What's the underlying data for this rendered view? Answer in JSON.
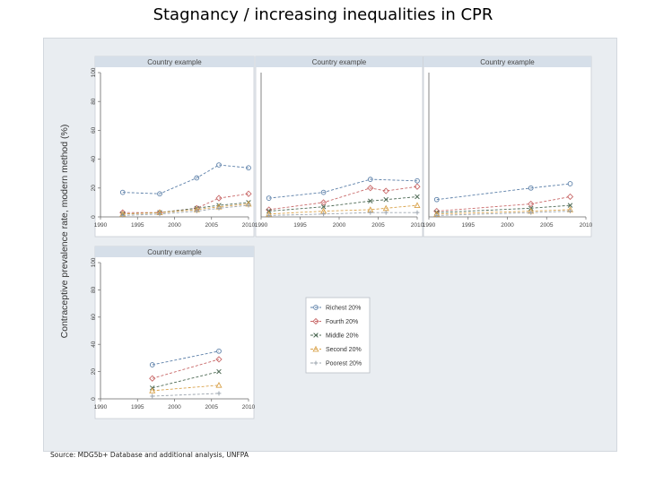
{
  "slide": {
    "title": "Stagnancy / increasing inequalities in CPR",
    "source": "Source: MDG5b+ Database and additional analysis, UNFPA"
  },
  "figure": {
    "ylabel": "Contraceptive prevalence rate, modern method (%)",
    "panel_title": "Country example"
  },
  "legend": {
    "entries": [
      {
        "label": "Richest 20%",
        "color": "#5b7fa8",
        "marker": "circle"
      },
      {
        "label": "Fourth 20%",
        "color": "#c96a6a",
        "marker": "diamond"
      },
      {
        "label": "Middle 20%",
        "color": "#4f6b56",
        "marker": "cross"
      },
      {
        "label": "Second 20%",
        "color": "#d9a24a",
        "marker": "triangle"
      },
      {
        "label": "Poorest 20%",
        "color": "#9ba4ae",
        "marker": "plus"
      }
    ]
  },
  "chart_data": [
    {
      "type": "line",
      "title": "Country example",
      "xlim": [
        1990,
        2010
      ],
      "ylim": [
        0,
        100
      ],
      "xticks": [
        1990,
        1995,
        2000,
        2005,
        2010
      ],
      "yticks": [
        0,
        20,
        40,
        60,
        80,
        100
      ],
      "series": [
        {
          "name": "Richest 20%",
          "x": [
            1993,
            1998,
            2003,
            2006,
            2010
          ],
          "y": [
            17,
            16,
            27,
            36,
            34
          ]
        },
        {
          "name": "Fourth 20%",
          "x": [
            1993,
            1998,
            2003,
            2006,
            2010
          ],
          "y": [
            3,
            3,
            6,
            13,
            16
          ]
        },
        {
          "name": "Middle 20%",
          "x": [
            1993,
            1998,
            2003,
            2006,
            2010
          ],
          "y": [
            2,
            3,
            6,
            8,
            10
          ]
        },
        {
          "name": "Second 20%",
          "x": [
            1993,
            1998,
            2003,
            2006,
            2010
          ],
          "y": [
            2,
            3,
            5,
            7,
            9
          ]
        },
        {
          "name": "Poorest 20%",
          "x": [
            1993,
            1998,
            2003,
            2006,
            2010
          ],
          "y": [
            1,
            2,
            4,
            6,
            8
          ]
        }
      ]
    },
    {
      "type": "line",
      "title": "Country example",
      "xlim": [
        1990,
        2010
      ],
      "ylim": [
        0,
        100
      ],
      "xticks": [
        1990,
        1995,
        2000,
        2005,
        2010
      ],
      "series": [
        {
          "name": "Richest 20%",
          "x": [
            1991,
            1998,
            2004,
            2010
          ],
          "y": [
            13,
            17,
            26,
            25
          ]
        },
        {
          "name": "Fourth 20%",
          "x": [
            1991,
            1998,
            2004,
            2006,
            2010
          ],
          "y": [
            5,
            10,
            20,
            18,
            21
          ]
        },
        {
          "name": "Middle 20%",
          "x": [
            1991,
            1998,
            2004,
            2006,
            2010
          ],
          "y": [
            4,
            7,
            11,
            12,
            14
          ]
        },
        {
          "name": "Second 20%",
          "x": [
            1991,
            1998,
            2004,
            2006,
            2010
          ],
          "y": [
            2,
            4,
            5,
            6,
            8
          ]
        },
        {
          "name": "Poorest 20%",
          "x": [
            1991,
            1998,
            2004,
            2006,
            2010
          ],
          "y": [
            1,
            2,
            3,
            3,
            3
          ]
        }
      ]
    },
    {
      "type": "line",
      "title": "Country example",
      "xlim": [
        1990,
        2010
      ],
      "ylim": [
        0,
        100
      ],
      "xticks": [
        1990,
        1995,
        2000,
        2005,
        2010
      ],
      "series": [
        {
          "name": "Richest 20%",
          "x": [
            1991,
            2003,
            2008
          ],
          "y": [
            12,
            20,
            23
          ]
        },
        {
          "name": "Fourth 20%",
          "x": [
            1991,
            2003,
            2008
          ],
          "y": [
            4,
            9,
            14
          ]
        },
        {
          "name": "Middle 20%",
          "x": [
            1991,
            2003,
            2008
          ],
          "y": [
            3,
            6,
            8
          ]
        },
        {
          "name": "Second 20%",
          "x": [
            1991,
            2003,
            2008
          ],
          "y": [
            2,
            4,
            5
          ]
        },
        {
          "name": "Poorest 20%",
          "x": [
            1991,
            2003,
            2008
          ],
          "y": [
            1,
            3,
            4
          ]
        }
      ]
    },
    {
      "type": "line",
      "title": "Country example",
      "xlim": [
        1990,
        2010
      ],
      "ylim": [
        0,
        100
      ],
      "xticks": [
        1990,
        1995,
        2000,
        2005,
        2010
      ],
      "yticks": [
        0,
        20,
        40,
        60,
        80,
        100
      ],
      "series": [
        {
          "name": "Richest 20%",
          "x": [
            1997,
            2006
          ],
          "y": [
            25,
            35
          ]
        },
        {
          "name": "Fourth 20%",
          "x": [
            1997,
            2006
          ],
          "y": [
            15,
            29
          ]
        },
        {
          "name": "Middle 20%",
          "x": [
            1997,
            2006
          ],
          "y": [
            8,
            20
          ]
        },
        {
          "name": "Second 20%",
          "x": [
            1997,
            2006
          ],
          "y": [
            6,
            10
          ]
        },
        {
          "name": "Poorest 20%",
          "x": [
            1997,
            2006
          ],
          "y": [
            2,
            4
          ]
        }
      ]
    }
  ]
}
